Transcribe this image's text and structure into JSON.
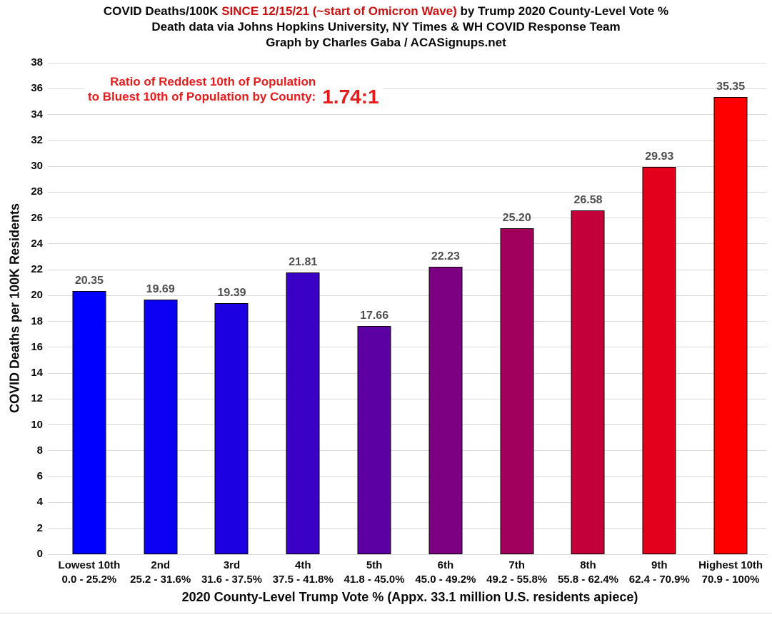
{
  "title": {
    "part1": "COVID Deaths/100K ",
    "highlight": "SINCE 12/15/21 (~start of Omicron Wave)",
    "part2": " by Trump 2020 County-Level Vote %",
    "line2": "Death data via Johns Hopkins University, NY Times & WH COVID Response Team",
    "line3": "Graph by Charles Gaba / ACASignups.net",
    "highlight_color": "#c90f10"
  },
  "annotation": {
    "line1": "Ratio of Reddest 10th of Population",
    "line2": "to Bluest 10th of Population by County:",
    "ratio": "1.74:1",
    "color": "#e31c1c"
  },
  "chart_data": {
    "type": "bar",
    "title": "COVID Deaths/100K SINCE 12/15/21 (~start of Omicron Wave) by Trump 2020 County-Level Vote %",
    "categories": [
      "Lowest 10th",
      "2nd",
      "3rd",
      "4th",
      "5th",
      "6th",
      "7th",
      "8th",
      "9th",
      "Highest 10th"
    ],
    "category_ranges": [
      "0.0 - 25.2%",
      "25.2 - 31.6%",
      "31.6 - 37.5%",
      "37.5 - 41.8%",
      "41.8 - 45.0%",
      "45.0 - 49.2%",
      "49.2 - 55.8%",
      "55.8 - 62.4%",
      "62.4 - 70.9%",
      "70.9 - 100%"
    ],
    "values": [
      20.35,
      19.69,
      19.39,
      21.81,
      17.66,
      22.23,
      25.2,
      26.58,
      29.93,
      35.35
    ],
    "value_labels": [
      "20.35",
      "19.69",
      "19.39",
      "21.81",
      "17.66",
      "22.23",
      "25.20",
      "26.58",
      "29.93",
      "35.35"
    ],
    "bar_colors": [
      "#0000ff",
      "#0b00f4",
      "#1d00e2",
      "#3a00c5",
      "#5c00a3",
      "#7d0082",
      "#a2005d",
      "#c4003b",
      "#e2001d",
      "#ff0000"
    ],
    "bar_border_color": "#000000",
    "xlabel": "2020 County-Level Trump Vote % (Appx. 33.1 million U.S. residents apiece)",
    "ylabel": "COVID Deaths per 100K Residents",
    "ylim": [
      0,
      38
    ],
    "ytick_step": 2,
    "yticks": [
      0,
      2,
      4,
      6,
      8,
      10,
      12,
      14,
      16,
      18,
      20,
      22,
      24,
      26,
      28,
      30,
      32,
      34,
      36,
      38
    ],
    "grid": true,
    "gridline_color": "#dadada",
    "value_label_color": "#4f4f4f",
    "legend": "none"
  }
}
